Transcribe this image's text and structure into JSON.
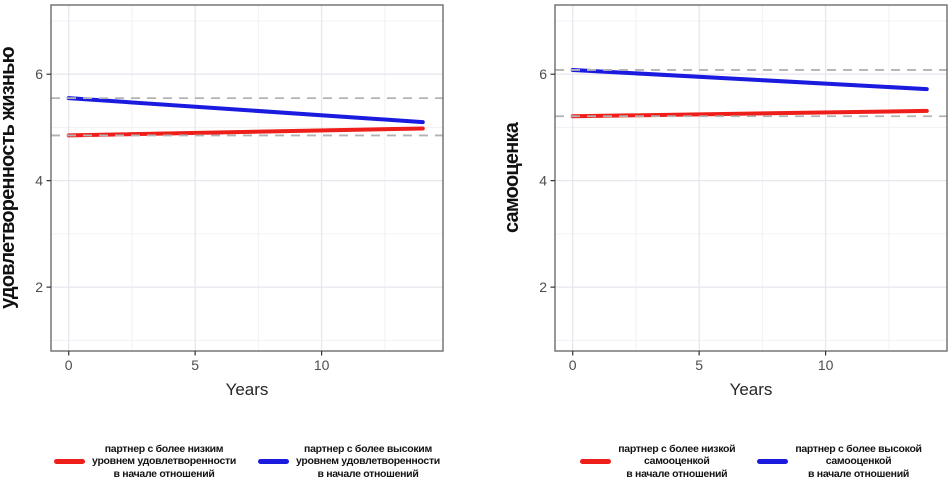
{
  "style": {
    "background": "#ffffff",
    "grid_major": "#e9e6ee",
    "grid_minor": "#f3f0f5",
    "panel_border": "#6b6b6b",
    "tick_mark": "#333333",
    "tick_label_color": "#4d4d4d",
    "axis_title_color": "#262626",
    "ref_line_color": "#b3b3b3",
    "red": "#ee1f1a",
    "blue": "#1b1be0"
  },
  "chart_data": [
    {
      "type": "line",
      "title": "",
      "ylabel": "удовлетворенность жизнью",
      "xlabel": "Years",
      "x_ticks": [
        0,
        5,
        10
      ],
      "y_ticks": [
        2,
        4,
        6
      ],
      "x_minor": [
        2.5,
        7.5,
        12.5
      ],
      "y_minor": [
        1,
        3,
        5,
        7
      ],
      "xlim": [
        -0.7,
        14.8
      ],
      "ylim": [
        0.8,
        7.3
      ],
      "grid": true,
      "legend_position": "bottom",
      "series": [
        {
          "id": "lower-start",
          "name": "партнер с более низким уровнем удовлетворенности в начале отношений",
          "color": "#ee1f1a",
          "x": [
            0,
            14
          ],
          "y": [
            4.85,
            4.98
          ]
        },
        {
          "id": "higher-start",
          "name": "партнер с более высоким уровнем удовлетворенности в начале отношений",
          "color": "#1b1be0",
          "x": [
            0,
            14
          ],
          "y": [
            5.55,
            5.1
          ]
        }
      ],
      "reference_lines": [
        {
          "y": 5.55,
          "style": "dashed",
          "color": "#b3b3b3"
        },
        {
          "y": 4.85,
          "style": "dashed",
          "color": "#b3b3b3"
        }
      ],
      "legend": [
        {
          "label": "партнер с более низким\nуровнем удовлетворенности\nв начале отношений",
          "color": "#ee1f1a"
        },
        {
          "label": "партнер с более высоким\nуровнем удовлетворенности\nв начале отношений",
          "color": "#1b1be0"
        }
      ]
    },
    {
      "type": "line",
      "title": "",
      "ylabel": "самооценка",
      "xlabel": "Years",
      "x_ticks": [
        0,
        5,
        10
      ],
      "y_ticks": [
        2,
        4,
        6
      ],
      "x_minor": [
        2.5,
        7.5,
        12.5
      ],
      "y_minor": [
        1,
        3,
        5,
        7
      ],
      "xlim": [
        -0.7,
        14.8
      ],
      "ylim": [
        0.8,
        7.3
      ],
      "grid": true,
      "legend_position": "bottom",
      "series": [
        {
          "id": "lower-start",
          "name": "партнер с более низкой самооценкой в начале отношений",
          "color": "#ee1f1a",
          "x": [
            0,
            14
          ],
          "y": [
            5.21,
            5.31
          ]
        },
        {
          "id": "higher-start",
          "name": "партнер с более высокой самооценкой в начале отношений",
          "color": "#1b1be0",
          "x": [
            0,
            14
          ],
          "y": [
            6.08,
            5.72
          ]
        }
      ],
      "reference_lines": [
        {
          "y": 6.08,
          "style": "dashed",
          "color": "#b3b3b3"
        },
        {
          "y": 5.21,
          "style": "dashed",
          "color": "#b3b3b3"
        }
      ],
      "legend": [
        {
          "label": "партнер с более низкой\nсамооценкой\nв начале отношений",
          "color": "#ee1f1a"
        },
        {
          "label": "партнер с более высокой\nсамооценкой\nв начале отношений",
          "color": "#1b1be0"
        }
      ]
    }
  ]
}
